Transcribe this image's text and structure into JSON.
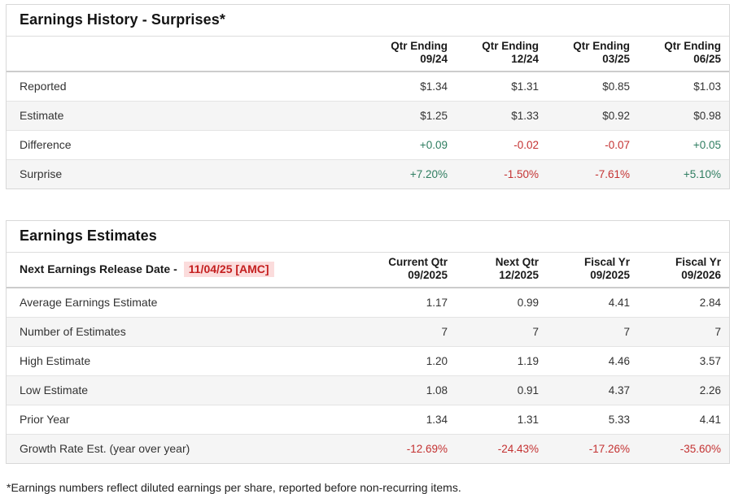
{
  "surprises": {
    "title": "Earnings History - Surprises*",
    "columns": [
      {
        "line1": "Qtr Ending",
        "line2": "09/24"
      },
      {
        "line1": "Qtr Ending",
        "line2": "12/24"
      },
      {
        "line1": "Qtr Ending",
        "line2": "03/25"
      },
      {
        "line1": "Qtr Ending",
        "line2": "06/25"
      }
    ],
    "rows": [
      {
        "label": "Reported",
        "values": [
          "$1.34",
          "$1.31",
          "$0.85",
          "$1.03"
        ]
      },
      {
        "label": "Estimate",
        "values": [
          "$1.25",
          "$1.33",
          "$0.92",
          "$0.98"
        ]
      },
      {
        "label": "Difference",
        "values": [
          "+0.09",
          "-0.02",
          "-0.07",
          "+0.05"
        ]
      },
      {
        "label": "Surprise",
        "values": [
          "+7.20%",
          "-1.50%",
          "-7.61%",
          "+5.10%"
        ]
      }
    ]
  },
  "estimates": {
    "title": "Earnings Estimates",
    "release_label": "Next Earnings Release Date -",
    "release_date": "11/04/25 [AMC]",
    "columns": [
      {
        "line1": "Current Qtr",
        "line2": "09/2025"
      },
      {
        "line1": "Next Qtr",
        "line2": "12/2025"
      },
      {
        "line1": "Fiscal Yr",
        "line2": "09/2025"
      },
      {
        "line1": "Fiscal Yr",
        "line2": "09/2026"
      }
    ],
    "rows": [
      {
        "label": "Average Earnings Estimate",
        "values": [
          "1.17",
          "0.99",
          "4.41",
          "2.84"
        ]
      },
      {
        "label": "Number of Estimates",
        "values": [
          "7",
          "7",
          "7",
          "7"
        ]
      },
      {
        "label": "High Estimate",
        "values": [
          "1.20",
          "1.19",
          "4.46",
          "3.57"
        ]
      },
      {
        "label": "Low Estimate",
        "values": [
          "1.08",
          "0.91",
          "4.37",
          "2.26"
        ]
      },
      {
        "label": "Prior Year",
        "values": [
          "1.34",
          "1.31",
          "5.33",
          "4.41"
        ]
      },
      {
        "label": "Growth Rate Est. (year over year)",
        "values": [
          "-12.69%",
          "-24.43%",
          "-17.26%",
          "-35.60%"
        ]
      }
    ]
  },
  "footnote": "*Earnings numbers reflect diluted earnings per share, reported before non-recurring items.",
  "colors": {
    "positive": "#2e7d60",
    "negative": "#c43232",
    "date_highlight_bg": "#fbdcdc",
    "date_text": "#c41f1f",
    "row_stripe": "#f5f5f5",
    "card_border": "#d8d8d8"
  }
}
